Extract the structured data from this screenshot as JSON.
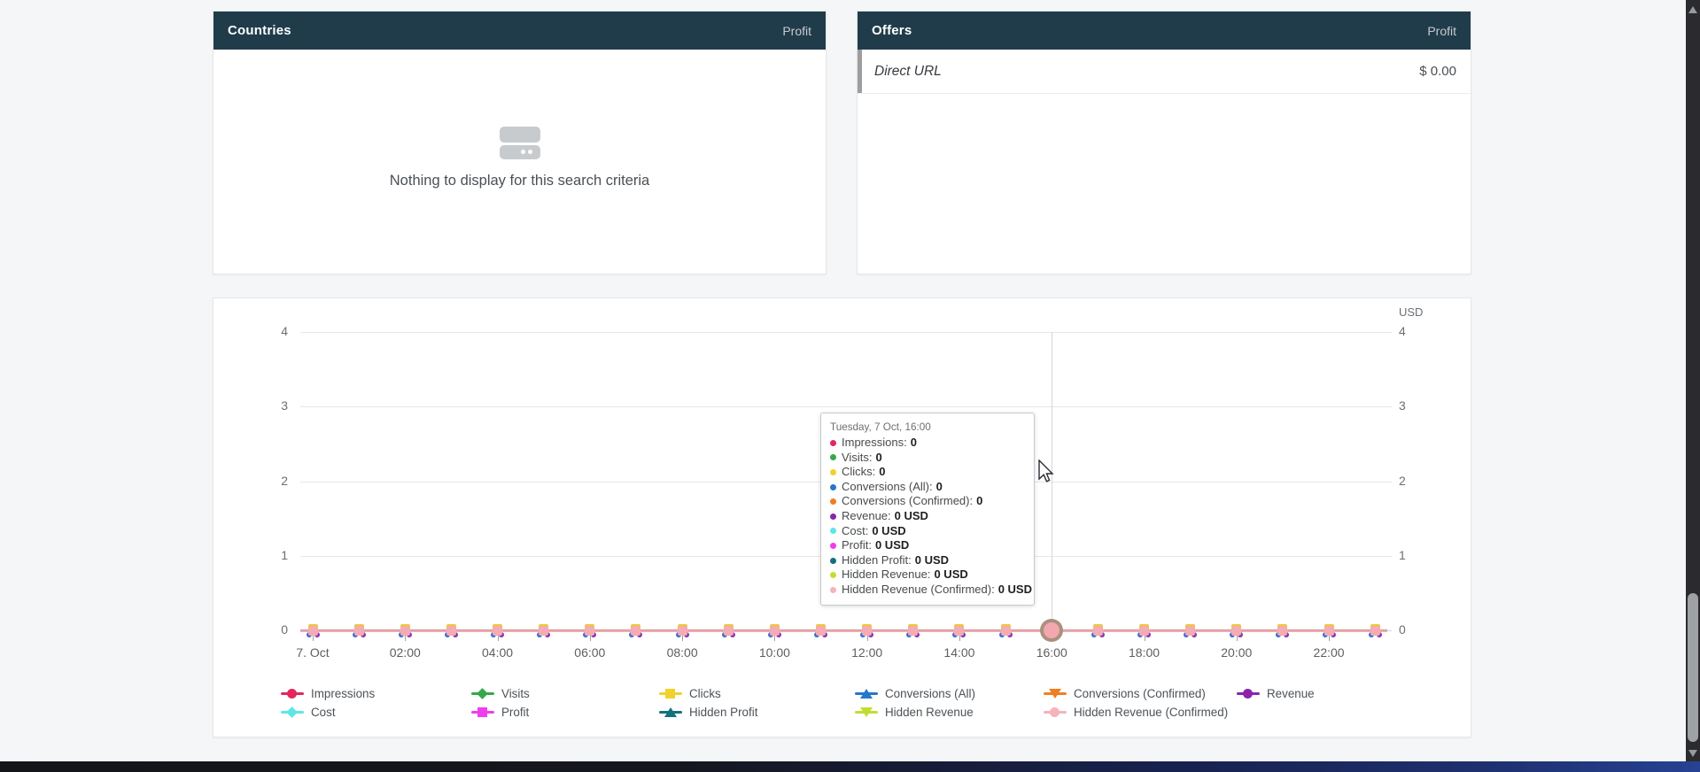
{
  "top_panels": {
    "countries": {
      "title": "Countries",
      "metric_column": "Profit",
      "empty_icon": "card-stack-icon",
      "empty_message": "Nothing to display for this search criteria"
    },
    "offers": {
      "title": "Offers",
      "metric_column": "Profit",
      "rows": [
        {
          "name": "Direct URL",
          "profit": "$ 0.00"
        }
      ]
    }
  },
  "chart_data": {
    "type": "line",
    "title": "",
    "unit_label": "USD",
    "ylim": [
      0,
      4
    ],
    "y_ticks": [
      "4",
      "3",
      "2",
      "1",
      "0"
    ],
    "grid": "horizontal-on",
    "legend_position": "bottom",
    "x": [
      "00:00",
      "01:00",
      "02:00",
      "03:00",
      "04:00",
      "05:00",
      "06:00",
      "07:00",
      "08:00",
      "09:00",
      "10:00",
      "11:00",
      "12:00",
      "13:00",
      "14:00",
      "15:00",
      "16:00",
      "17:00",
      "18:00",
      "19:00",
      "20:00",
      "21:00",
      "22:00",
      "23:00"
    ],
    "x_axis_tick_labels": [
      "7. Oct",
      "02:00",
      "04:00",
      "06:00",
      "08:00",
      "10:00",
      "12:00",
      "14:00",
      "16:00",
      "18:00",
      "20:00",
      "22:00"
    ],
    "hovered_point": {
      "x_label": "16:00",
      "x_index": 16,
      "y": 0
    },
    "series": [
      {
        "name": "Impressions",
        "color": "#e4265c",
        "marker": "circle",
        "values": [
          0,
          0,
          0,
          0,
          0,
          0,
          0,
          0,
          0,
          0,
          0,
          0,
          0,
          0,
          0,
          0,
          0,
          0,
          0,
          0,
          0,
          0,
          0,
          0
        ]
      },
      {
        "name": "Visits",
        "color": "#36a849",
        "marker": "diamond",
        "values": [
          0,
          0,
          0,
          0,
          0,
          0,
          0,
          0,
          0,
          0,
          0,
          0,
          0,
          0,
          0,
          0,
          0,
          0,
          0,
          0,
          0,
          0,
          0,
          0
        ]
      },
      {
        "name": "Clicks",
        "color": "#f2d12c",
        "marker": "square",
        "values": [
          0,
          0,
          0,
          0,
          0,
          0,
          0,
          0,
          0,
          0,
          0,
          0,
          0,
          0,
          0,
          0,
          0,
          0,
          0,
          0,
          0,
          0,
          0,
          0
        ]
      },
      {
        "name": "Conversions (All)",
        "color": "#2478cc",
        "marker": "triangle-up",
        "values": [
          0,
          0,
          0,
          0,
          0,
          0,
          0,
          0,
          0,
          0,
          0,
          0,
          0,
          0,
          0,
          0,
          0,
          0,
          0,
          0,
          0,
          0,
          0,
          0
        ]
      },
      {
        "name": "Conversions (Confirmed)",
        "color": "#ef7e23",
        "marker": "triangle-down",
        "values": [
          0,
          0,
          0,
          0,
          0,
          0,
          0,
          0,
          0,
          0,
          0,
          0,
          0,
          0,
          0,
          0,
          0,
          0,
          0,
          0,
          0,
          0,
          0,
          0
        ]
      },
      {
        "name": "Revenue",
        "color": "#8b24aa",
        "marker": "circle",
        "values": [
          0,
          0,
          0,
          0,
          0,
          0,
          0,
          0,
          0,
          0,
          0,
          0,
          0,
          0,
          0,
          0,
          0,
          0,
          0,
          0,
          0,
          0,
          0,
          0
        ]
      },
      {
        "name": "Cost",
        "color": "#5ee6e6",
        "marker": "diamond",
        "values": [
          0,
          0,
          0,
          0,
          0,
          0,
          0,
          0,
          0,
          0,
          0,
          0,
          0,
          0,
          0,
          0,
          0,
          0,
          0,
          0,
          0,
          0,
          0,
          0
        ]
      },
      {
        "name": "Profit",
        "color": "#ef3ded",
        "marker": "square",
        "values": [
          0,
          0,
          0,
          0,
          0,
          0,
          0,
          0,
          0,
          0,
          0,
          0,
          0,
          0,
          0,
          0,
          0,
          0,
          0,
          0,
          0,
          0,
          0,
          0
        ]
      },
      {
        "name": "Hidden Profit",
        "color": "#11737a",
        "marker": "triangle-up",
        "values": [
          0,
          0,
          0,
          0,
          0,
          0,
          0,
          0,
          0,
          0,
          0,
          0,
          0,
          0,
          0,
          0,
          0,
          0,
          0,
          0,
          0,
          0,
          0,
          0
        ]
      },
      {
        "name": "Hidden Revenue",
        "color": "#c3dc34",
        "marker": "triangle-down",
        "values": [
          0,
          0,
          0,
          0,
          0,
          0,
          0,
          0,
          0,
          0,
          0,
          0,
          0,
          0,
          0,
          0,
          0,
          0,
          0,
          0,
          0,
          0,
          0,
          0
        ]
      },
      {
        "name": "Hidden Revenue (Confirmed)",
        "color": "#f5b3ba",
        "marker": "circle",
        "values": [
          0,
          0,
          0,
          0,
          0,
          0,
          0,
          0,
          0,
          0,
          0,
          0,
          0,
          0,
          0,
          0,
          0,
          0,
          0,
          0,
          0,
          0,
          0,
          0
        ]
      }
    ]
  },
  "tooltip": {
    "title": "Tuesday, 7 Oct, 16:00",
    "rows": [
      {
        "label": "Impressions",
        "value": "0"
      },
      {
        "label": "Visits",
        "value": "0"
      },
      {
        "label": "Clicks",
        "value": "0"
      },
      {
        "label": "Conversions (All)",
        "value": "0"
      },
      {
        "label": "Conversions (Confirmed)",
        "value": "0"
      },
      {
        "label": "Revenue",
        "value": "0 USD"
      },
      {
        "label": "Cost",
        "value": "0 USD"
      },
      {
        "label": "Profit",
        "value": "0 USD"
      },
      {
        "label": "Hidden Profit",
        "value": "0 USD"
      },
      {
        "label": "Hidden Revenue",
        "value": "0 USD"
      },
      {
        "label": "Hidden Revenue (Confirmed)",
        "value": "0 USD"
      }
    ]
  },
  "scrollbar": {
    "up_icon": "scroll-up-arrow-icon",
    "down_icon": "scroll-down-arrow-icon"
  }
}
